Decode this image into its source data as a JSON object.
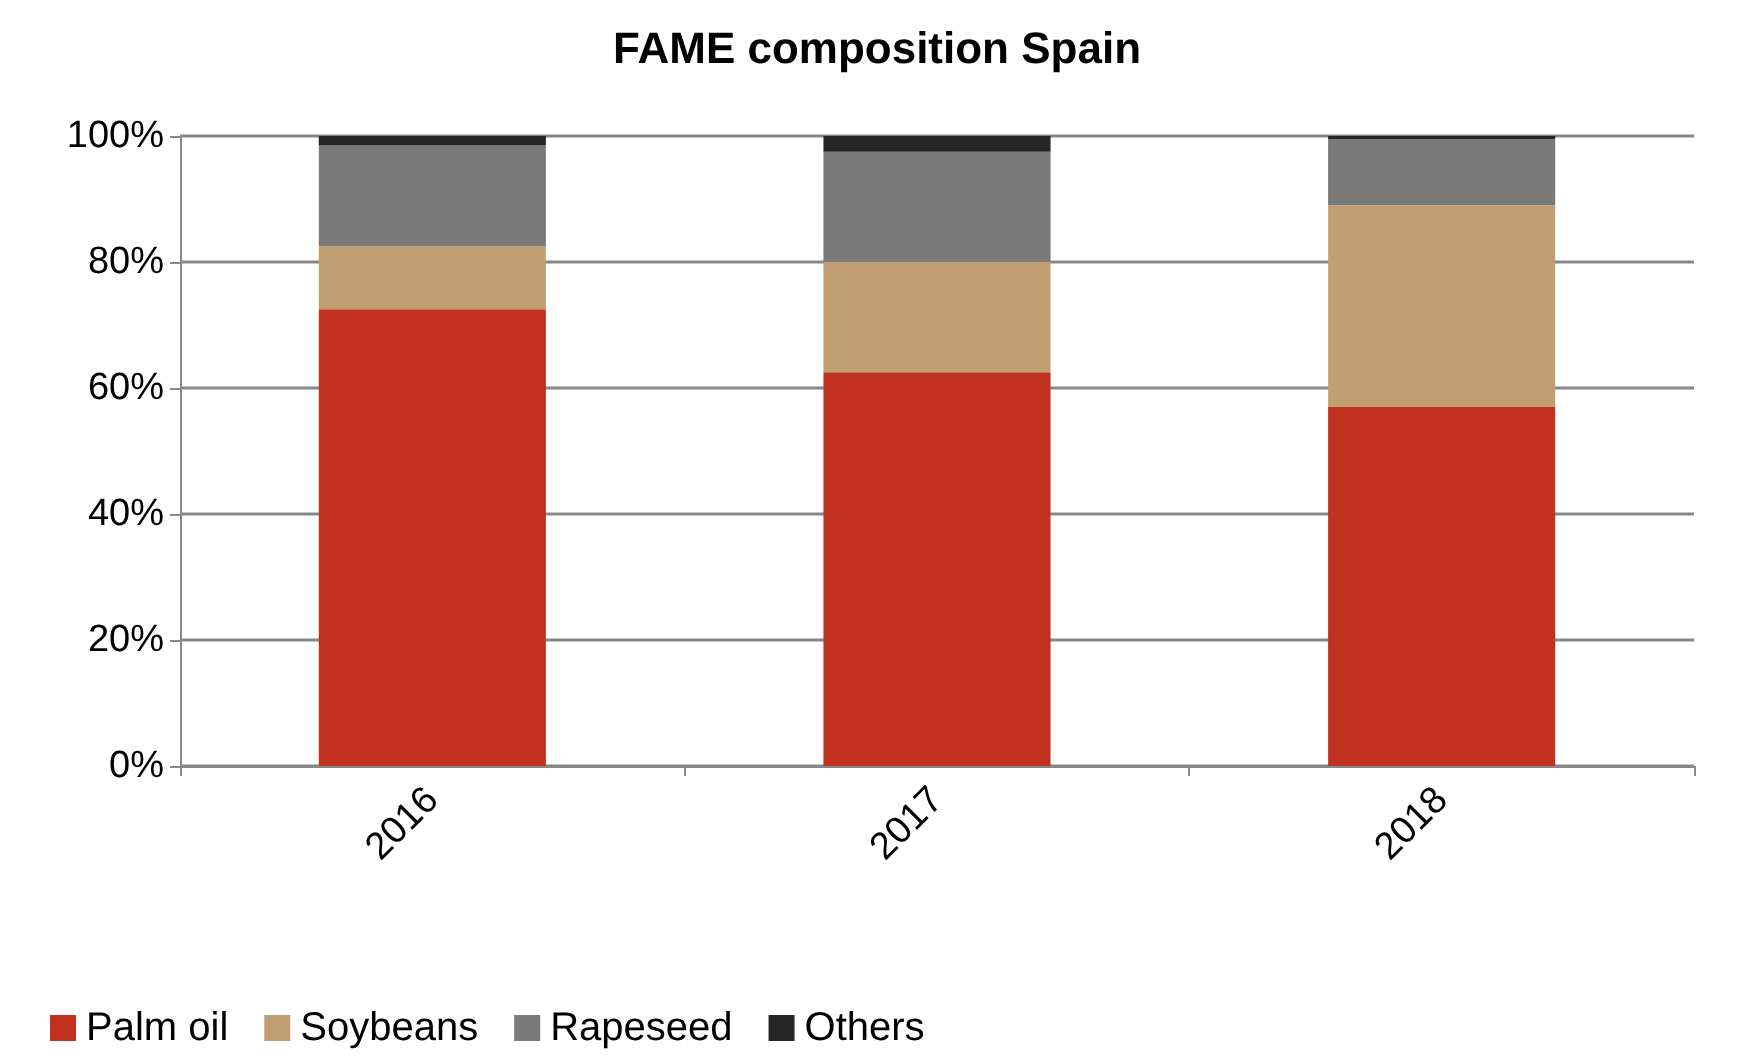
{
  "chart_data": {
    "type": "bar",
    "stacked": true,
    "title": "FAME composition Spain",
    "categories": [
      "2016",
      "2017",
      "2018"
    ],
    "series": [
      {
        "name": "Palm oil",
        "color": "#c0311f",
        "values": [
          72.5,
          62.5,
          57
        ]
      },
      {
        "name": "Soybeans",
        "color": "#c19f73",
        "values": [
          10,
          17.5,
          32
        ]
      },
      {
        "name": "Rapeseed",
        "color": "#7a7a7a",
        "values": [
          16,
          17.5,
          10.5
        ]
      },
      {
        "name": "Others",
        "color": "#262626",
        "values": [
          1.5,
          2.5,
          0.5
        ]
      }
    ],
    "ylim": [
      0,
      100
    ],
    "yticks": [
      {
        "value": 0,
        "label": "0%"
      },
      {
        "value": 20,
        "label": "20%"
      },
      {
        "value": 40,
        "label": "40%"
      },
      {
        "value": 60,
        "label": "60%"
      },
      {
        "value": 80,
        "label": "80%"
      },
      {
        "value": 100,
        "label": "100%"
      }
    ],
    "grid": "y",
    "legend": "bottom left"
  }
}
